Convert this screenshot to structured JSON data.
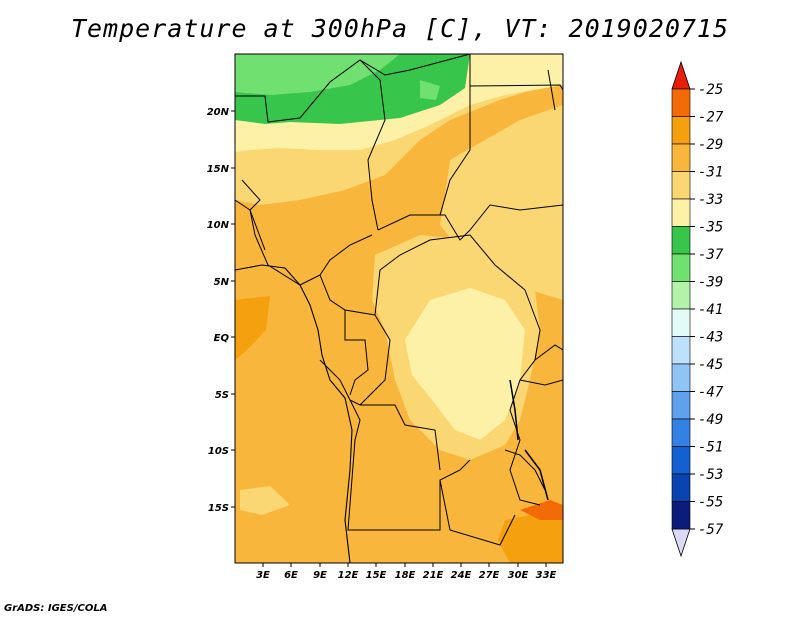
{
  "title": "Temperature at 300hPa [C], VT: 2019020715",
  "credit": "GrADS: IGES/COLA",
  "map": {
    "lat_labels": [
      "20N",
      "15N",
      "10N",
      "5N",
      "EQ",
      "5S",
      "10S",
      "15S"
    ],
    "lon_labels": [
      "3E",
      "6E",
      "9E",
      "12E",
      "15E",
      "18E",
      "21E",
      "24E",
      "27E",
      "30E",
      "33E"
    ]
  },
  "colorbar": {
    "labels": [
      "-25",
      "-27",
      "-29",
      "-31",
      "-33",
      "-35",
      "-37",
      "-39",
      "-41",
      "-43",
      "-45",
      "-47",
      "-49",
      "-51",
      "-53",
      "-55",
      "-57"
    ],
    "colors": [
      "#f03c0a",
      "#f36b06",
      "#f5a00f",
      "#f8b63c",
      "#fbd773",
      "#fdf1a7",
      "#37c54c",
      "#70e071",
      "#b2f2a9",
      "#e3fbf8",
      "#bde1fb",
      "#8fc4f5",
      "#5fa1ec",
      "#3281e3",
      "#1560d0",
      "#0a44b0",
      "#0b1c7a"
    ],
    "top_color": "#e61e0a",
    "bottom_color": "#dcd8f5"
  }
}
